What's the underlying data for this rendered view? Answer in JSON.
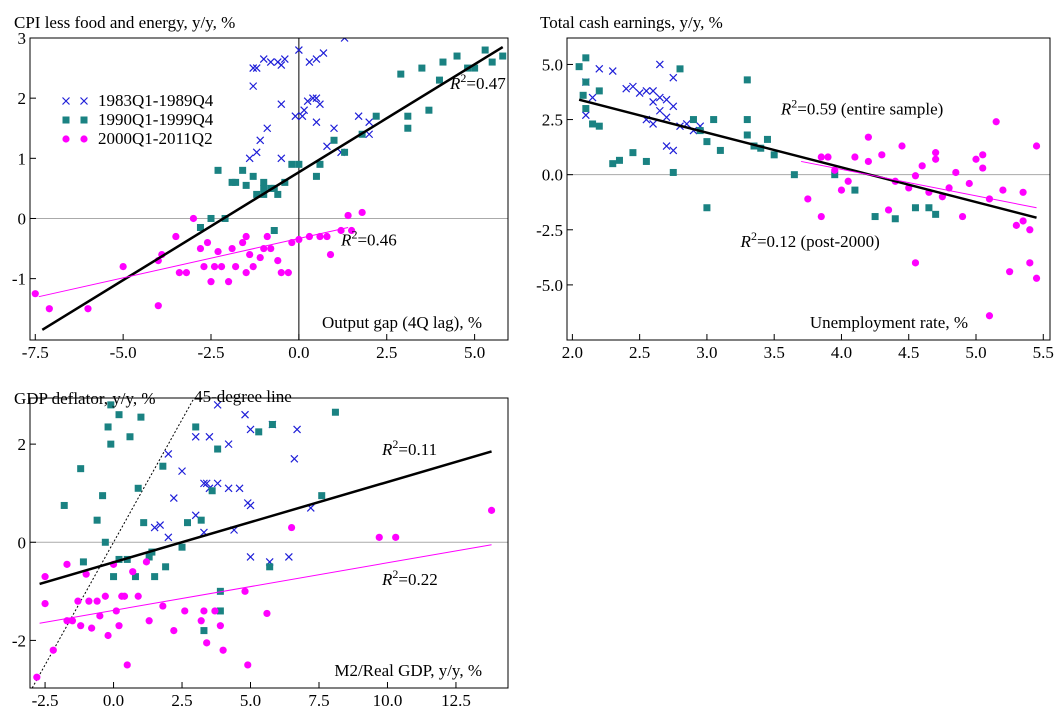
{
  "chart_data": [
    {
      "type": "scatter",
      "y_label": "CPI less food and energy, y/y, %",
      "x_label": "Output gap (4Q lag), %",
      "xlim": [
        -7.65,
        5.95
      ],
      "ylim": [
        -2.02,
        3
      ],
      "xticks": [
        -7.5,
        {
          "value": -5,
          "label": "-5.0"
        },
        -2.5,
        {
          "value": 0,
          "label": "0.0"
        },
        2.5,
        {
          "value": 5,
          "label": "5.0"
        }
      ],
      "yticks": [
        3,
        2,
        1,
        0,
        -1
      ],
      "zero_line": true,
      "vline": 0,
      "legend": "upper left",
      "series": [
        {
          "name": "1983Q1-1989Q4",
          "color": "#1f1fd8",
          "marker": "x",
          "x": [
            -1.3,
            -1.2,
            -1.3,
            -1.0,
            -0.8,
            -0.6,
            -0.5,
            -0.4,
            0,
            0.15,
            0.25,
            0.4,
            0.5,
            0.6,
            0.3,
            0.5,
            0.7,
            1.3,
            -1.1,
            -0.9,
            -0.5,
            -0.1,
            0.1,
            0.5,
            0.8,
            1.0,
            1.2,
            1.7,
            2.0,
            2.0,
            -1.4,
            -1.2,
            -0.5
          ],
          "y": [
            2.5,
            2.5,
            2.2,
            2.65,
            2.6,
            2.6,
            2.55,
            2.65,
            2.8,
            1.8,
            1.95,
            2.0,
            2.0,
            1.9,
            2.6,
            2.65,
            2.75,
            3.0,
            1.3,
            1.5,
            1.9,
            1.7,
            1.7,
            1.6,
            1.2,
            1.5,
            1.1,
            1.7,
            1.6,
            1.4,
            1.0,
            1.1,
            1.0
          ]
        },
        {
          "name": "1990Q1-1999Q4",
          "color": "#1a8282",
          "marker": "square",
          "x": [
            -2.8,
            -2.5,
            -2.1,
            -2.3,
            -1.9,
            -1.8,
            -1.6,
            -1.5,
            -1.2,
            -1.0,
            -1.0,
            -0.8,
            -0.7,
            -0.6,
            -0.4,
            -0.2,
            0,
            0.5,
            0.6,
            -1.3,
            1.0,
            1.3,
            1.8,
            2.2,
            2.9,
            3.1,
            3.1,
            3.5,
            3.7,
            4.0,
            4.1,
            4.5,
            4.8,
            5.0,
            5.3,
            5.5,
            5.8,
            -1.0,
            -0.7
          ],
          "y": [
            -0.15,
            0,
            0,
            0.8,
            0.6,
            0.6,
            0.8,
            0.55,
            0.4,
            0.4,
            0.5,
            0.5,
            0.5,
            0.4,
            0.6,
            0.9,
            0.9,
            0.7,
            0.9,
            0.7,
            1.3,
            1.1,
            1.4,
            1.7,
            2.4,
            1.7,
            1.5,
            2.5,
            1.8,
            2.3,
            2.6,
            2.7,
            2.5,
            2.5,
            2.8,
            2.6,
            2.7,
            0.6,
            -0.2
          ]
        },
        {
          "name": "2000Q1-2011Q2",
          "color": "#ff00ff",
          "marker": "circle",
          "x": [
            -7.5,
            -7.1,
            -6.0,
            -5.0,
            -4.0,
            -3.9,
            -4.0,
            -3.5,
            -3.4,
            -3.2,
            -3.0,
            -2.8,
            -2.7,
            -2.6,
            -2.5,
            -2.4,
            -2.2,
            -2.0,
            -1.9,
            -1.8,
            -1.6,
            -1.5,
            -1.4,
            -1.3,
            -1.1,
            -1.0,
            -0.9,
            -0.8,
            -0.6,
            -0.5,
            -0.3,
            -0.2,
            0,
            0.3,
            0.6,
            0.8,
            0.9,
            1.2,
            1.4,
            1.5,
            1.8,
            -1.5,
            -2.3
          ],
          "y": [
            -1.25,
            -1.5,
            -1.5,
            -0.8,
            -0.7,
            -0.6,
            -1.45,
            -0.3,
            -0.9,
            -0.9,
            0,
            -0.5,
            -0.8,
            -0.4,
            -1.05,
            -0.8,
            -0.8,
            -1.05,
            -0.5,
            -0.8,
            -0.4,
            -0.9,
            -0.6,
            -0.8,
            -0.65,
            -0.5,
            -0.3,
            -0.5,
            -0.7,
            -0.9,
            -0.9,
            -0.4,
            -0.35,
            -0.3,
            -0.3,
            -0.3,
            -0.6,
            -0.2,
            0.05,
            -0.2,
            0.1,
            -0.3,
            -0.55
          ]
        }
      ],
      "fit_lines": [
        {
          "color": "#000000",
          "x": [
            -7.3,
            5.8
          ],
          "y": [
            -1.85,
            2.85
          ]
        },
        {
          "color": "#ff00ff",
          "x": [
            -7.4,
            1.4
          ],
          "y": [
            -1.3,
            -0.15
          ]
        }
      ],
      "annotations": [
        {
          "italic": "R",
          "sup": "2",
          "text": "=0.47"
        },
        {
          "italic": "R",
          "sup": "2",
          "text": "=0.46"
        }
      ]
    },
    {
      "type": "scatter",
      "y_label": "Total cash earnings, y/y, %",
      "x_label": "Unemployment rate, %",
      "xlim": [
        1.96,
        5.55
      ],
      "ylim": [
        -7.5,
        6.2
      ],
      "xticks": [
        {
          "value": 2,
          "label": "2.0"
        },
        2.5,
        {
          "value": 3,
          "label": "3.0"
        },
        3.5,
        {
          "value": 4,
          "label": "4.0"
        },
        4.5,
        {
          "value": 5,
          "label": "5.0"
        },
        5.5
      ],
      "yticks": [
        {
          "value": 5,
          "label": "5.0"
        },
        2.5,
        {
          "value": 0,
          "label": "0.0"
        },
        -2.5,
        {
          "value": -5,
          "label": "-5.0"
        }
      ],
      "zero_line": true,
      "series": [
        {
          "color": "#1f1fd8",
          "marker": "x",
          "x": [
            2.1,
            2.2,
            2.3,
            2.4,
            2.45,
            2.5,
            2.55,
            2.6,
            2.6,
            2.65,
            2.65,
            2.7,
            2.7,
            2.7,
            2.75,
            2.75,
            2.8,
            2.75,
            2.85,
            2.9,
            2.95,
            2.1,
            2.15,
            2.6,
            2.65,
            2.55
          ],
          "y": [
            4.2,
            4.8,
            4.7,
            3.9,
            4.0,
            3.7,
            3.8,
            3.8,
            2.3,
            5.0,
            3.5,
            3.4,
            2.6,
            1.3,
            4.4,
            3.1,
            2.2,
            1.1,
            2.3,
            2.0,
            2.2,
            2.7,
            3.5,
            3.3,
            2.9,
            2.5
          ]
        },
        {
          "color": "#1a8282",
          "marker": "square",
          "x": [
            2.05,
            2.1,
            2.1,
            2.1,
            2.08,
            2.15,
            2.2,
            2.2,
            2.3,
            2.35,
            2.45,
            2.55,
            2.75,
            2.8,
            2.9,
            3.0,
            3.05,
            3.1,
            3.3,
            3.3,
            3.3,
            3.35,
            3.4,
            3.45,
            3.5,
            3.65,
            3.95,
            4.1,
            4.25,
            4.4,
            4.55,
            4.65,
            4.7,
            3.0,
            2.95
          ],
          "y": [
            4.9,
            5.3,
            4.2,
            3.0,
            3.6,
            2.3,
            2.2,
            3.8,
            0.5,
            0.65,
            1.0,
            0.6,
            0.1,
            4.8,
            2.5,
            -1.5,
            2.5,
            1.1,
            4.3,
            2.5,
            1.8,
            1.3,
            1.2,
            1.6,
            0.9,
            0,
            0,
            -0.7,
            -1.9,
            -2.0,
            -1.5,
            -1.5,
            -1.8,
            1.5,
            2.0
          ]
        },
        {
          "color": "#ff00ff",
          "marker": "circle",
          "x": [
            3.75,
            3.85,
            3.9,
            3.95,
            4.0,
            4.05,
            4.1,
            4.2,
            4.2,
            4.3,
            4.4,
            4.45,
            4.5,
            4.55,
            4.55,
            4.6,
            4.65,
            4.7,
            4.7,
            4.75,
            4.8,
            4.85,
            4.9,
            4.95,
            5.0,
            5.05,
            5.05,
            5.1,
            5.1,
            5.15,
            5.2,
            5.25,
            5.3,
            5.35,
            5.35,
            5.4,
            5.4,
            5.45,
            5.45,
            3.85,
            4.35
          ],
          "y": [
            -1.1,
            -1.9,
            0.8,
            0.2,
            -0.7,
            -0.3,
            0.8,
            1.7,
            0.6,
            0.9,
            -0.3,
            1.3,
            -0.6,
            -0.05,
            -4.0,
            0.4,
            -0.8,
            1.0,
            0.7,
            -1.0,
            -0.6,
            0.1,
            -1.9,
            -0.4,
            0.7,
            0.9,
            0.3,
            -6.4,
            -1.1,
            2.4,
            -0.7,
            -4.4,
            -2.3,
            -0.8,
            -2.1,
            -4.0,
            -2.5,
            1.3,
            -4.7,
            0.8,
            -1.6
          ]
        }
      ],
      "fit_lines": [
        {
          "color": "#000000",
          "x": [
            2.05,
            5.45
          ],
          "y": [
            3.4,
            -1.95
          ]
        },
        {
          "color": "#ff00ff",
          "x": [
            3.7,
            5.45
          ],
          "y": [
            0.6,
            -1.5
          ]
        }
      ],
      "annotations": [
        {
          "italic": "R",
          "sup": "2",
          "text": "=0.59 (entire sample)"
        },
        {
          "italic": "R",
          "sup": "2",
          "text": "=0.12 (post-2000)"
        }
      ]
    },
    {
      "type": "scatter",
      "y_label": "GDP deflator, y/y, %",
      "x_label": "M2/Real GDP, y/y, %",
      "xlim": [
        -3.05,
        14.4
      ],
      "ylim": [
        -2.97,
        2.94
      ],
      "xticks": [
        -2.5,
        {
          "value": 0,
          "label": "0.0"
        },
        2.5,
        {
          "value": 5,
          "label": "5.0"
        },
        7.5,
        {
          "value": 10,
          "label": "10.0"
        },
        12.5
      ],
      "yticks": [
        2,
        0,
        -2
      ],
      "zero_line": true,
      "diagonal": "45-degree line",
      "series": [
        {
          "color": "#1f1fd8",
          "marker": "x",
          "x": [
            3.8,
            4.8,
            5.8,
            6.7,
            6.6,
            5.0,
            3.0,
            3.5,
            4.2,
            2.0,
            2.5,
            3.3,
            3.4,
            3.8,
            4.2,
            4.6,
            2.2,
            4.9,
            5.0,
            7.2,
            3.0,
            1.5,
            3.3,
            4.4,
            5.0,
            6.4,
            5.7,
            2.0,
            3.5,
            1.7
          ],
          "y": [
            2.8,
            2.6,
            2.4,
            2.3,
            1.7,
            2.3,
            2.15,
            2.15,
            2.0,
            1.8,
            1.45,
            1.2,
            1.2,
            1.2,
            1.1,
            1.1,
            0.9,
            0.8,
            0.75,
            0.7,
            0.55,
            0.3,
            0.2,
            0.25,
            -0.3,
            -0.3,
            -0.4,
            0.1,
            1.1,
            0.35
          ]
        },
        {
          "color": "#1a8282",
          "marker": "square",
          "x": [
            -0.1,
            0.2,
            1.0,
            8.1,
            -0.2,
            0.6,
            -0.1,
            3.0,
            5.8,
            5.3,
            3.8,
            -1.2,
            1.8,
            0.9,
            1.1,
            -1.8,
            -0.6,
            7.6,
            3.6,
            2.7,
            3.2,
            -0.4,
            1.4,
            -0.3,
            0.2,
            0.5,
            0.8,
            1.3,
            1.9,
            -1.1,
            0,
            3.9,
            3.9,
            3.3,
            5.7,
            2.5,
            1.5
          ],
          "y": [
            2.8,
            2.6,
            2.55,
            2.65,
            2.35,
            2.15,
            2.0,
            2.35,
            2.4,
            2.25,
            1.9,
            1.5,
            1.55,
            1.1,
            0.4,
            0.75,
            0.45,
            0.95,
            1.05,
            0.4,
            0.45,
            0.95,
            -0.2,
            0,
            -0.35,
            -0.35,
            -0.7,
            -0.3,
            -0.5,
            -0.4,
            -0.7,
            -1.0,
            -1.4,
            -1.8,
            -0.5,
            -0.1,
            -0.7
          ]
        },
        {
          "color": "#ff00ff",
          "marker": "circle",
          "x": [
            -2.8,
            -2.2,
            -2.5,
            -2.5,
            -1.7,
            -1.7,
            -1.3,
            -1.2,
            -1.0,
            -0.9,
            -0.8,
            -0.6,
            -0.5,
            -0.3,
            -0.2,
            0,
            0.1,
            0.3,
            0.4,
            0.5,
            0.7,
            0.9,
            1.2,
            1.3,
            1.8,
            2.2,
            2.6,
            3.2,
            3.3,
            3.4,
            3.7,
            3.9,
            4.0,
            4.8,
            4.9,
            5.6,
            6.5,
            9.7,
            10.3,
            13.8,
            -1.5,
            0.2
          ],
          "y": [
            -2.75,
            -2.2,
            -0.7,
            -1.25,
            -0.45,
            -1.6,
            -1.2,
            -1.7,
            -0.65,
            -1.2,
            -1.75,
            -1.2,
            -1.5,
            -1.1,
            -1.9,
            -0.45,
            -1.4,
            -1.1,
            -1.1,
            -2.5,
            -0.6,
            -1.1,
            -0.4,
            -1.6,
            -1.3,
            -1.8,
            -1.4,
            -1.6,
            -1.4,
            -2.05,
            -1.4,
            -1.7,
            -2.2,
            -1.0,
            -2.5,
            -1.45,
            0.3,
            0.1,
            0.1,
            0.65,
            -1.6,
            -1.7
          ]
        }
      ],
      "fit_lines": [
        {
          "color": "#000000",
          "x": [
            -2.7,
            13.8
          ],
          "y": [
            -0.85,
            1.85
          ]
        },
        {
          "color": "#ff00ff",
          "x": [
            -2.7,
            13.8
          ],
          "y": [
            -1.65,
            -0.05
          ]
        }
      ],
      "annotations": [
        {
          "italic": "R",
          "sup": "2",
          "text": "=0.11"
        },
        {
          "italic": "R",
          "sup": "2",
          "text": "=0.22"
        }
      ]
    }
  ]
}
